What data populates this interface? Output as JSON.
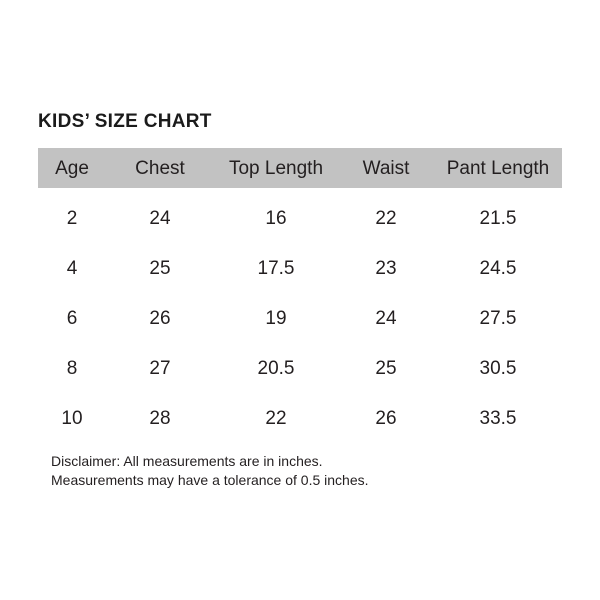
{
  "title": "KIDS’ SIZE CHART",
  "table": {
    "columns": [
      "Age",
      "Chest",
      "Top Length",
      "Waist",
      "Pant Length"
    ],
    "rows": [
      [
        "2",
        "24",
        "16",
        "22",
        "21.5"
      ],
      [
        "4",
        "25",
        "17.5",
        "23",
        "24.5"
      ],
      [
        "6",
        "26",
        "19",
        "24",
        "27.5"
      ],
      [
        "8",
        "27",
        "20.5",
        "25",
        "30.5"
      ],
      [
        "10",
        "28",
        "22",
        "26",
        "33.5"
      ]
    ]
  },
  "disclaimer": {
    "line1": "Disclaimer: All measurements are in inches.",
    "line2": "Measurements may have a tolerance of 0.5 inches."
  },
  "colors": {
    "header_bg": "#c2c2c2",
    "text": "#231f20",
    "background": "#ffffff"
  }
}
